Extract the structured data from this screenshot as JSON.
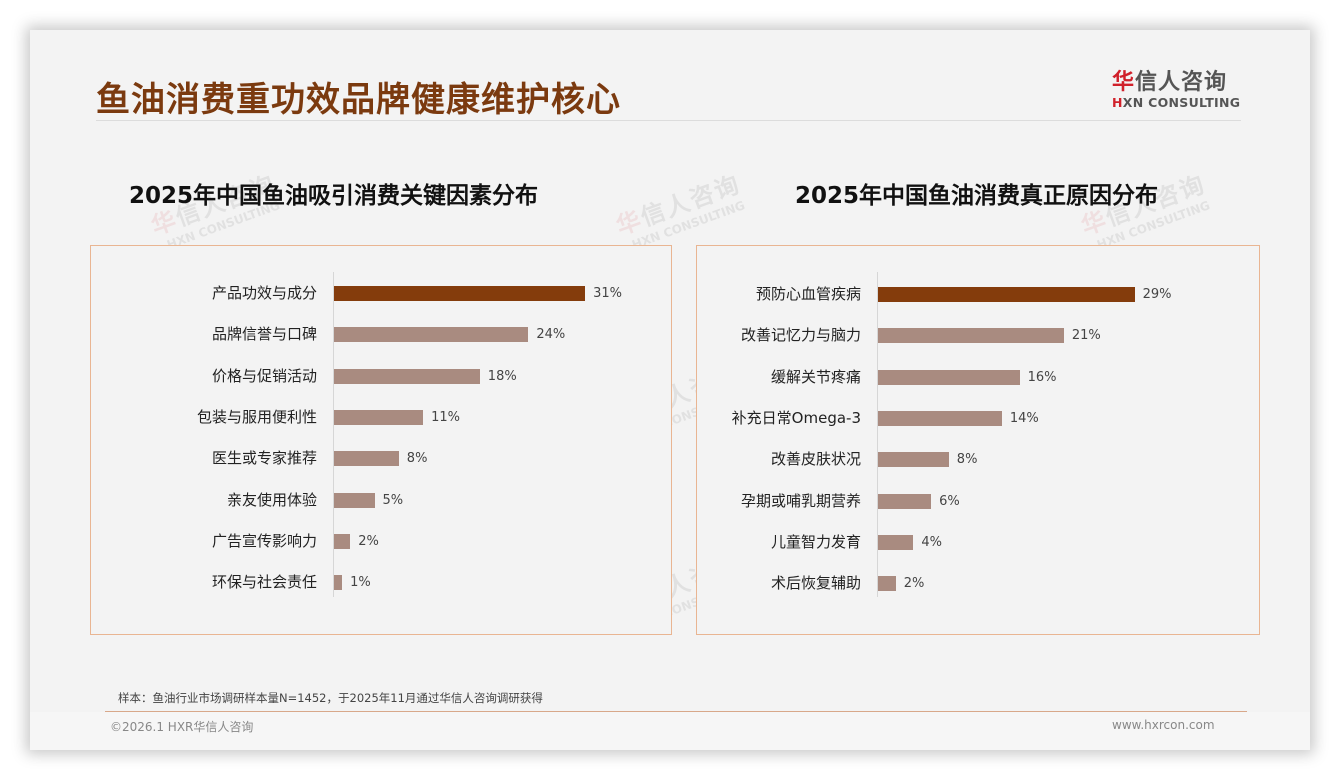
{
  "header": {
    "title": "鱼油消费重功效品牌健康维护核心",
    "logo": {
      "cn_highlight": "华",
      "cn_rest": "信人咨询",
      "en_highlight": "H",
      "en_rest": "XN CONSULTING"
    }
  },
  "colors": {
    "title": "#7b3a0f",
    "bar_highlight": "#843c0c",
    "bar_default": "#a98b80",
    "panel_border": "#e9b592",
    "logo_red": "#d0202a"
  },
  "watermark": {
    "cn_highlight": "华",
    "cn_rest": "信人咨询",
    "en": "HXN CONSULTING"
  },
  "chart_data": [
    {
      "type": "bar",
      "orientation": "horizontal",
      "title": "2025年中国鱼油吸引消费关键因素分布",
      "categories": [
        "产品功效与成分",
        "品牌信誉与口碑",
        "价格与促销活动",
        "包装与服用便利性",
        "医生或专家推荐",
        "亲友使用体验",
        "广告宣传影响力",
        "环保与社会责任"
      ],
      "values": [
        31,
        24,
        18,
        11,
        8,
        5,
        2,
        1
      ],
      "value_labels": [
        "31%",
        "24%",
        "18%",
        "11%",
        "8%",
        "5%",
        "2%",
        "1%"
      ],
      "unit": "%",
      "highlight_index": 0,
      "xlabel": "",
      "ylabel": "",
      "grid": false,
      "legend": false
    },
    {
      "type": "bar",
      "orientation": "horizontal",
      "title": "2025年中国鱼油消费真正原因分布",
      "categories": [
        "预防心血管疾病",
        "改善记忆力与脑力",
        "缓解关节疼痛",
        "补充日常Omega-3",
        "改善皮肤状况",
        "孕期或哺乳期营养",
        "儿童智力发育",
        "术后恢复辅助"
      ],
      "values": [
        29,
        21,
        16,
        14,
        8,
        6,
        4,
        2
      ],
      "value_labels": [
        "29%",
        "21%",
        "16%",
        "14%",
        "8%",
        "6%",
        "4%",
        "2%"
      ],
      "unit": "%",
      "highlight_index": 0,
      "xlabel": "",
      "ylabel": "",
      "grid": false,
      "legend": false
    }
  ],
  "footer": {
    "sample_note": "样本：鱼油行业市场调研样本量N=1452，于2025年11月通过华信人咨询调研获得",
    "copyright": "©2026.1 HXR华信人咨询",
    "website": "www.hxrcon.com"
  }
}
